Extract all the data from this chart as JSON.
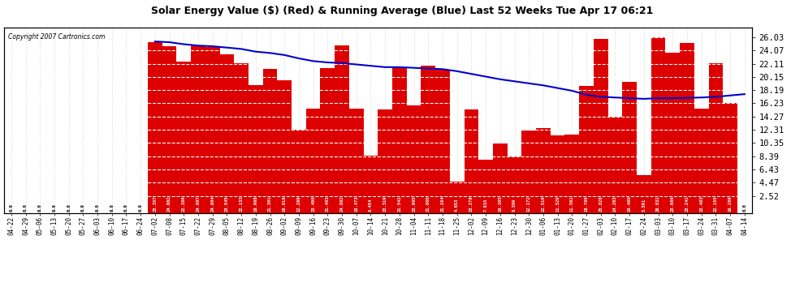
{
  "title": "Solar Energy Value ($) (Red) & Running Average (Blue) Last 52 Weeks Tue Apr 17 06:21",
  "copyright": "Copyright 2007 Cartronics.com",
  "bar_color": "#dd0000",
  "line_color": "#0000cc",
  "background_color": "#ffffff",
  "plot_bg_color": "#ffffff",
  "ylim": [
    0.0,
    27.5
  ],
  "yticks_right": [
    2.52,
    4.47,
    6.43,
    8.39,
    10.35,
    12.31,
    14.27,
    16.23,
    18.19,
    20.15,
    22.11,
    24.07,
    26.03
  ],
  "categories": [
    "04-22",
    "04-29",
    "05-06",
    "05-13",
    "05-20",
    "05-27",
    "06-03",
    "06-10",
    "06-17",
    "06-24",
    "07-02",
    "07-08",
    "07-15",
    "07-22",
    "07-29",
    "08-05",
    "08-12",
    "08-19",
    "08-26",
    "09-02",
    "09-09",
    "09-16",
    "09-23",
    "09-30",
    "10-07",
    "10-14",
    "10-21",
    "10-28",
    "11-04",
    "11-11",
    "11-18",
    "11-25",
    "12-02",
    "12-09",
    "12-16",
    "12-23",
    "12-30",
    "01-06",
    "01-13",
    "01-20",
    "01-27",
    "02-03",
    "02-10",
    "02-17",
    "02-24",
    "03-03",
    "03-10",
    "03-17",
    "03-24",
    "03-31",
    "04-07",
    "04-14"
  ],
  "values": [
    0.0,
    0.0,
    0.0,
    0.0,
    0.0,
    0.0,
    0.0,
    0.0,
    0.0,
    0.0,
    25.357,
    24.662,
    22.389,
    24.807,
    24.604,
    23.545,
    22.133,
    18.908,
    21.301,
    19.618,
    12.266,
    15.49,
    21.403,
    24.882,
    15.473,
    8.454,
    15.319,
    21.541,
    15.905,
    21.866,
    21.194,
    4.653,
    15.278,
    7.815,
    10.305,
    8.389,
    12.172,
    12.51,
    11.529,
    11.561,
    18.78,
    25.828,
    14.263,
    19.4,
    5.591,
    26.031,
    23.686,
    25.241,
    15.483,
    22.155,
    16.289,
    0.0
  ],
  "running_avg": [
    null,
    null,
    null,
    null,
    null,
    null,
    null,
    null,
    null,
    null,
    25.4,
    25.3,
    25.0,
    24.8,
    24.7,
    24.5,
    24.3,
    23.9,
    23.7,
    23.4,
    22.9,
    22.5,
    22.3,
    22.2,
    22.0,
    21.8,
    21.6,
    21.6,
    21.5,
    21.4,
    21.3,
    21.0,
    20.6,
    20.2,
    19.8,
    19.5,
    19.2,
    18.9,
    18.5,
    18.1,
    17.5,
    17.2,
    17.1,
    17.0,
    16.9,
    17.0,
    17.0,
    17.05,
    17.1,
    17.2,
    17.4,
    17.6
  ]
}
